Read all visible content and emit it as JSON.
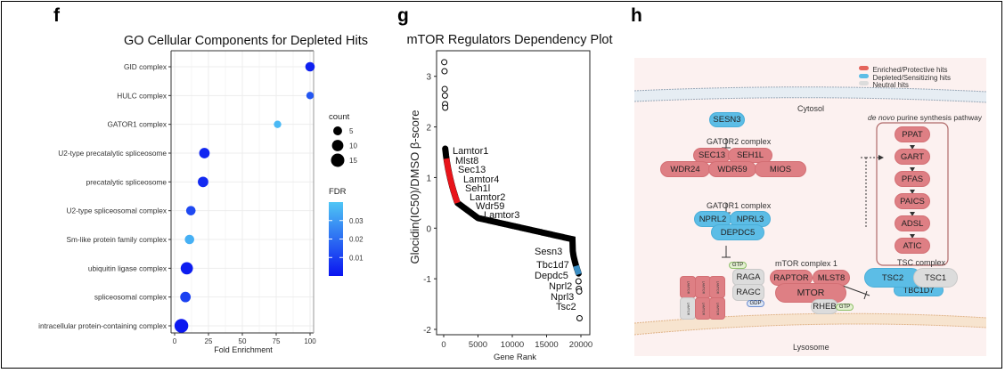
{
  "panels": {
    "f": {
      "letter": "f"
    },
    "g": {
      "letter": "g"
    },
    "h": {
      "letter": "h"
    }
  },
  "chart_data": [
    {
      "type": "scatter",
      "title": "GO Cellular Components for Depleted Hits",
      "xlabel": "Fold Enrichment",
      "ylabel": "",
      "xlim": [
        0,
        100
      ],
      "xticks": [
        "0",
        "25",
        "50",
        "75",
        "100"
      ],
      "grid": true,
      "categories": [
        "GID complex",
        "HULC complex",
        "GATOR1 complex",
        "U2-type precatalytic spliceosome",
        "precatalytic spliceosome",
        "U2-type spliceosomal complex",
        "Sm-like protein family complex",
        "ubiquitin ligase complex",
        "spliceosomal complex",
        "intracellular protein-containing complex"
      ],
      "fold_enrichment": [
        100,
        100,
        76,
        22,
        21,
        12,
        11,
        9,
        8,
        5
      ],
      "count": [
        6,
        3,
        3,
        8,
        8,
        6,
        6,
        12,
        8,
        16
      ],
      "fdr": [
        0.003,
        0.015,
        0.037,
        0.004,
        0.005,
        0.012,
        0.035,
        0.002,
        0.01,
        0.001
      ],
      "legend": {
        "size_title": "count",
        "size_values": [
          "5",
          "10",
          "15"
        ],
        "color_title": "FDR",
        "color_ticks": [
          "0.03",
          "0.02",
          "0.01"
        ],
        "color_range": [
          0.0,
          0.04
        ],
        "color_low": "#0a14f0",
        "color_high": "#4fc6f5",
        "placement": "right"
      }
    },
    {
      "type": "scatter",
      "title": "mTOR Regulators Dependency Plot",
      "xlabel": "Gene Rank",
      "ylabel": "Glocidin(IC50)/DMSO β-score",
      "xlim": [
        0,
        20000
      ],
      "ylim": [
        -2,
        3.4
      ],
      "xticks": [
        "0",
        "5000",
        "10000",
        "15000",
        "20000"
      ],
      "yticks": [
        "-2",
        "-1",
        "0",
        "1",
        "2",
        "3"
      ],
      "grid": false,
      "outlier_points": [
        {
          "x": 80,
          "y": 3.28
        },
        {
          "x": 120,
          "y": 3.1
        },
        {
          "x": 150,
          "y": 2.75
        },
        {
          "x": 180,
          "y": 2.62
        },
        {
          "x": 200,
          "y": 2.45
        },
        {
          "x": 220,
          "y": 2.38
        },
        {
          "x": 19650,
          "y": -1.05
        },
        {
          "x": 19700,
          "y": -1.2
        },
        {
          "x": 19750,
          "y": -1.25
        },
        {
          "x": 19800,
          "y": -1.78
        }
      ],
      "highlight_ranges": [
        {
          "name": "Enriched/Protective",
          "color": "#e8141a",
          "rank_from": 400,
          "rank_to": 2000
        },
        {
          "name": "Depleted/Sensitizing",
          "color": "#3a8ec4",
          "rank_from": 19300,
          "rank_to": 19700
        }
      ],
      "labels_enriched": [
        "Lamtor1",
        "Mlst8",
        "Sec13",
        "Lamtor4",
        "Seh1l",
        "Lamtor2",
        "Wdr59",
        "Lamtor3"
      ],
      "labels_depleted": [
        "Sesn3",
        "Tbc1d7",
        "Depdc5",
        "Nprl2",
        "Nprl3",
        "Tsc2"
      ]
    }
  ],
  "diagram": {
    "legend": {
      "enriched": "Enriched/Protective hits",
      "depleted": "Depleted/Sensitizing hits",
      "neutral": "Neutral hits"
    },
    "colors": {
      "enriched": "#de7f84",
      "depleted": "#5cbde6",
      "neutral": "#dcdcdc"
    },
    "cytosol": "Cytosol",
    "lysosome": "Lysosome",
    "sesn3": "SESN3",
    "gator2": {
      "title": "GATOR2 complex",
      "sec13": "SEC13",
      "seh1l": "SEH1L",
      "wdr24": "WDR24",
      "wdr59": "WDR59",
      "mios": "MIOS"
    },
    "gator1": {
      "title": "GATOR1 complex",
      "nprl2": "NPRL2",
      "nprl3": "NPRL3",
      "depdc5": "DEPDC5"
    },
    "purine": {
      "title_italic": "de novo",
      "title_rest": " purine synthesis pathway",
      "steps": [
        "PPAT",
        "GART",
        "PFAS",
        "PAICS",
        "ADSL",
        "ATIC"
      ]
    },
    "mtorc1": {
      "title": "mTOR complex 1",
      "raptor": "RAPTOR",
      "mlst8": "MLST8",
      "mtor": "MTOR"
    },
    "rag": {
      "raga": "RAGA",
      "ragc": "RAGC",
      "gtp": "GTP",
      "gdp": "GDP"
    },
    "lamtor": {
      "label": "LAMTOR"
    },
    "rheb": {
      "label": "RHEB",
      "gtp": "GTP"
    },
    "tsc": {
      "title": "TSC complex",
      "tsc2": "TSC2",
      "tsc1": "TSC1",
      "tbc1d7": "TBC1D7"
    }
  }
}
